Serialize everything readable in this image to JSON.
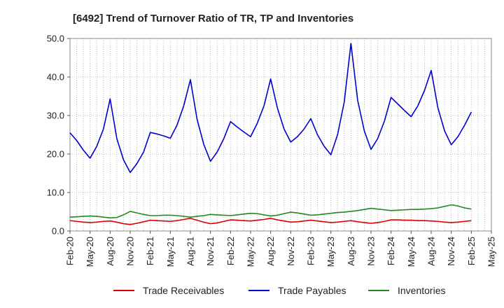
{
  "chart_data": {
    "type": "line",
    "title": "[6492]  Trend of Turnover Ratio of TR, TP and Inventories",
    "xlabel": "",
    "ylabel": "",
    "ylim": [
      0,
      50
    ],
    "yticks": [
      "0.0",
      "10.0",
      "20.0",
      "30.0",
      "40.0",
      "50.0"
    ],
    "xticks": [
      "Feb-20",
      "May-20",
      "Aug-20",
      "Nov-20",
      "Feb-21",
      "May-21",
      "Aug-21",
      "Nov-21",
      "Feb-22",
      "May-22",
      "Aug-22",
      "Nov-22",
      "Feb-23",
      "May-23",
      "Aug-23",
      "Nov-23",
      "Feb-24",
      "May-24",
      "Aug-24",
      "Nov-24",
      "Feb-25",
      "May-25"
    ],
    "grid": true,
    "legend": "bottom",
    "x": [
      "Feb-20",
      "Mar-20",
      "Apr-20",
      "May-20",
      "Jun-20",
      "Jul-20",
      "Aug-20",
      "Sep-20",
      "Oct-20",
      "Nov-20",
      "Dec-20",
      "Jan-21",
      "Feb-21",
      "Mar-21",
      "Apr-21",
      "May-21",
      "Jun-21",
      "Jul-21",
      "Aug-21",
      "Sep-21",
      "Oct-21",
      "Nov-21",
      "Dec-21",
      "Jan-22",
      "Feb-22",
      "Mar-22",
      "Apr-22",
      "May-22",
      "Jun-22",
      "Jul-22",
      "Aug-22",
      "Sep-22",
      "Oct-22",
      "Nov-22",
      "Dec-22",
      "Jan-23",
      "Feb-23",
      "Mar-23",
      "Apr-23",
      "May-23",
      "Jun-23",
      "Jul-23",
      "Aug-23",
      "Sep-23",
      "Oct-23",
      "Nov-23",
      "Dec-23",
      "Jan-24",
      "Feb-24",
      "Mar-24",
      "Apr-24",
      "May-24",
      "Jun-24",
      "Jul-24",
      "Aug-24",
      "Sep-24",
      "Oct-24",
      "Nov-24",
      "Dec-24",
      "Jan-25",
      "Feb-25"
    ],
    "series": [
      {
        "name": "Trade Receivables",
        "color": "#dd0000",
        "values": [
          2.7,
          2.5,
          2.3,
          2.2,
          2.3,
          2.5,
          2.6,
          2.3,
          1.9,
          1.7,
          2.0,
          2.4,
          2.8,
          2.7,
          2.6,
          2.5,
          2.7,
          3.0,
          3.3,
          2.8,
          2.3,
          1.9,
          2.1,
          2.5,
          2.9,
          2.8,
          2.7,
          2.6,
          2.8,
          3.0,
          3.3,
          2.9,
          2.6,
          2.3,
          2.4,
          2.6,
          2.8,
          2.6,
          2.4,
          2.2,
          2.3,
          2.5,
          2.7,
          2.4,
          2.2,
          2.0,
          2.2,
          2.5,
          2.9,
          2.9,
          2.8,
          2.8,
          2.7,
          2.7,
          2.6,
          2.5,
          2.3,
          2.2,
          2.3,
          2.5,
          2.7
        ]
      },
      {
        "name": "Trade Payables",
        "color": "#0000cc",
        "values": [
          25.5,
          23.5,
          21.0,
          18.9,
          22.0,
          26.5,
          34.3,
          24.0,
          18.5,
          15.2,
          17.5,
          20.5,
          25.6,
          25.2,
          24.7,
          24.1,
          27.5,
          32.5,
          39.3,
          29.0,
          22.5,
          18.1,
          20.5,
          24.0,
          28.4,
          27.0,
          25.7,
          24.5,
          28.0,
          32.5,
          39.5,
          32.0,
          26.5,
          23.1,
          24.5,
          26.5,
          29.2,
          25.0,
          22.0,
          19.8,
          25.0,
          33.5,
          48.7,
          34.0,
          26.0,
          21.2,
          24.0,
          28.5,
          34.7,
          33.0,
          31.3,
          29.7,
          32.5,
          36.5,
          41.7,
          32.0,
          26.0,
          22.4,
          24.5,
          27.5,
          30.9
        ]
      },
      {
        "name": "Inventories",
        "color": "#228822",
        "values": [
          3.6,
          3.7,
          3.8,
          3.9,
          3.8,
          3.6,
          3.4,
          3.5,
          4.2,
          5.1,
          4.7,
          4.3,
          4.0,
          4.0,
          4.1,
          4.1,
          4.0,
          3.8,
          3.6,
          3.8,
          4.0,
          4.3,
          4.2,
          4.1,
          4.0,
          4.2,
          4.4,
          4.6,
          4.5,
          4.2,
          3.9,
          4.1,
          4.5,
          4.9,
          4.7,
          4.4,
          4.1,
          4.2,
          4.4,
          4.6,
          4.8,
          4.9,
          5.1,
          5.3,
          5.6,
          5.9,
          5.7,
          5.5,
          5.3,
          5.4,
          5.5,
          5.6,
          5.6,
          5.7,
          5.8,
          6.0,
          6.4,
          6.8,
          6.5,
          6.0,
          5.7
        ]
      }
    ]
  }
}
